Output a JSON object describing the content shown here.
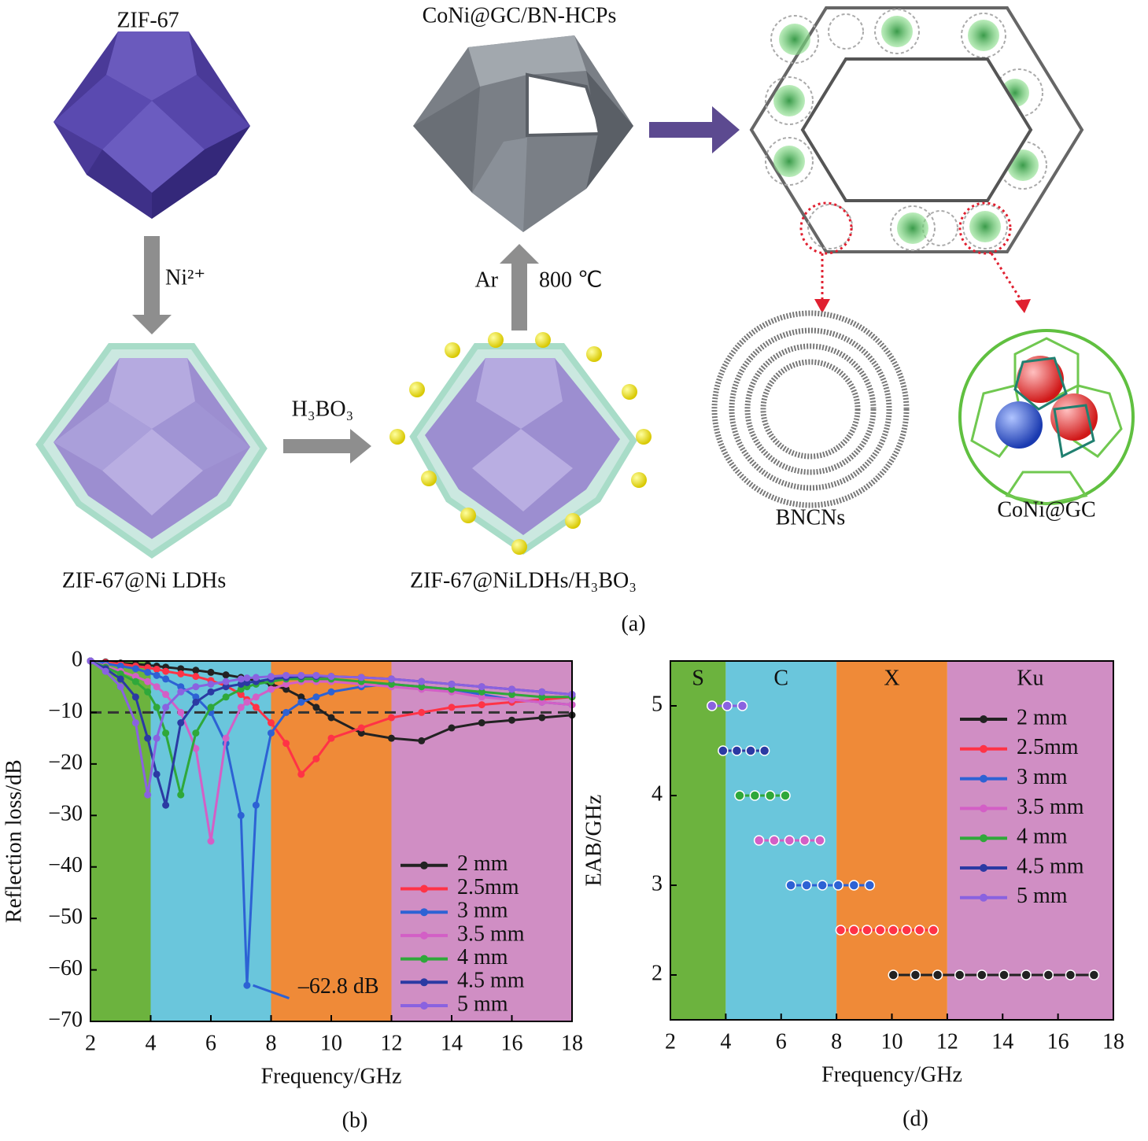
{
  "diagram": {
    "zif67": "ZIF-67",
    "ni": "Ni²⁺",
    "zif67_ldh": "ZIF-67@Ni LDHs",
    "h3bo3": "H₃BO₃",
    "zif67_ldh_h3bo3": "ZIF-67@NiLDHs/H₃BO₃",
    "ar": "Ar",
    "temp": "800 ℃",
    "product": "CoNi@GC/BN-HCPs",
    "bncns": "BNCNs",
    "conigc": "CoNi@GC",
    "panel": "(a)"
  },
  "chart_data": [
    {
      "type": "line",
      "panel": "(b)",
      "xlabel": "Frequency/GHz",
      "ylabel": "Reflection loss/dB",
      "xlim": [
        2,
        18
      ],
      "xticks": [
        2,
        4,
        6,
        8,
        10,
        12,
        14,
        16,
        18
      ],
      "ylim": [
        -70,
        0
      ],
      "yticks": [
        {
          "value": 0,
          "label": "0"
        },
        {
          "value": -10,
          "label": "−10"
        },
        {
          "value": -20,
          "label": "−20"
        },
        {
          "value": -30,
          "label": "−30"
        },
        {
          "value": -40,
          "label": "−40"
        },
        {
          "value": -50,
          "label": "−50"
        },
        {
          "value": -60,
          "label": "−60"
        },
        {
          "value": -70,
          "label": "−70"
        }
      ],
      "bands": [
        {
          "xlim": [
            2,
            4
          ],
          "color": "#6cb33e"
        },
        {
          "xlim": [
            4,
            8
          ],
          "color": "#6ac6dc"
        },
        {
          "xlim": [
            8,
            12
          ],
          "color": "#ef8a38"
        },
        {
          "xlim": [
            12,
            18
          ],
          "color": "#d08ec4"
        }
      ],
      "hline": -10,
      "annotation": "–62.8 dB",
      "legend": "lower right",
      "x": [
        2,
        2.5,
        3,
        3.5,
        3.9,
        4.2,
        4.5,
        5,
        5.5,
        6,
        6.5,
        7,
        7.2,
        7.5,
        8,
        8.5,
        9,
        9.5,
        10,
        11,
        12,
        13,
        14,
        15,
        16,
        17,
        18
      ],
      "series": [
        {
          "name": "2 mm",
          "color": "#222222",
          "values": [
            0,
            -0.2,
            -0.4,
            -0.6,
            -0.8,
            -1,
            -1.2,
            -1.5,
            -1.8,
            -2.2,
            -2.7,
            -3.2,
            -3.4,
            -3.8,
            -4.5,
            -5.5,
            -7,
            -9,
            -11,
            -14,
            -15,
            -15.5,
            -13,
            -12,
            -11.5,
            -11,
            -10.5
          ]
        },
        {
          "name": "2.5mm",
          "color": "#ff3346",
          "values": [
            0,
            -0.3,
            -0.6,
            -1,
            -1.3,
            -1.6,
            -2,
            -2.5,
            -3,
            -3.8,
            -4.8,
            -6.5,
            -7.5,
            -9,
            -12,
            -16,
            -22,
            -19,
            -15,
            -13,
            -11,
            -10,
            -9,
            -8.5,
            -8,
            -7.5,
            -7
          ]
        },
        {
          "name": "3 mm",
          "color": "#2d62d4",
          "values": [
            0,
            -0.5,
            -1,
            -1.5,
            -2.2,
            -2.8,
            -3.5,
            -5,
            -7,
            -10,
            -16,
            -30,
            -63,
            -28,
            -14,
            -10,
            -8,
            -7,
            -6,
            -5,
            -4.5,
            -5,
            -5.5,
            -6.5,
            -7.5,
            -8,
            -8.5
          ]
        },
        {
          "name": "3.5 mm",
          "color": "#d35fc6",
          "values": [
            0,
            -1,
            -2,
            -3,
            -4,
            -5,
            -6.5,
            -10,
            -17,
            -35,
            -15,
            -9,
            -8,
            -7,
            -5.5,
            -4.5,
            -4,
            -4,
            -4,
            -4.5,
            -5,
            -5.5,
            -6,
            -7,
            -7.5,
            -8,
            -8.5
          ]
        },
        {
          "name": "4 mm",
          "color": "#2fa83a",
          "values": [
            0,
            -1.2,
            -2.5,
            -4,
            -6,
            -9,
            -14,
            -26,
            -14,
            -9,
            -7,
            -5.5,
            -5,
            -4.5,
            -4,
            -3.5,
            -3.5,
            -3.5,
            -3.5,
            -4,
            -4.5,
            -5,
            -5.5,
            -6,
            -6.5,
            -7,
            -7
          ]
        },
        {
          "name": "4.5 mm",
          "color": "#2b3aa3",
          "values": [
            0,
            -1.5,
            -3.5,
            -7,
            -15,
            -22,
            -28,
            -12,
            -8,
            -6,
            -5,
            -4.5,
            -4.2,
            -4,
            -3.5,
            -3.2,
            -3,
            -3,
            -3,
            -3.2,
            -3.5,
            -4,
            -4.5,
            -5,
            -5.5,
            -6,
            -6.5
          ]
        },
        {
          "name": "5 mm",
          "color": "#8a62e0",
          "values": [
            0,
            -2,
            -5,
            -12,
            -26,
            -15,
            -9,
            -6,
            -5,
            -4.5,
            -4,
            -3.5,
            -3.3,
            -3.2,
            -3,
            -2.8,
            -2.8,
            -2.8,
            -3,
            -3.2,
            -3.5,
            -4,
            -4.5,
            -5,
            -5.5,
            -6,
            -6.5
          ]
        }
      ]
    },
    {
      "type": "scatter",
      "panel": "(d)",
      "xlabel": "Frequency/GHz",
      "ylabel": "EAB/GHz",
      "xlim": [
        2,
        18
      ],
      "xticks": [
        2,
        4,
        6,
        8,
        10,
        12,
        14,
        16,
        18
      ],
      "ylim": [
        1.5,
        5.5
      ],
      "yticks": [
        2,
        3,
        4,
        5
      ],
      "bands": [
        {
          "xlim": [
            2,
            4
          ],
          "color": "#6cb33e",
          "label": "S"
        },
        {
          "xlim": [
            4,
            8
          ],
          "color": "#6ac6dc",
          "label": "C"
        },
        {
          "xlim": [
            8,
            12
          ],
          "color": "#ef8a38",
          "label": "X"
        },
        {
          "xlim": [
            12,
            18
          ],
          "color": "#d08ec4",
          "label": "Ku"
        }
      ],
      "legend": "upper right",
      "series": [
        {
          "name": "2 mm",
          "color": "#222222",
          "x": [
            10.05,
            10.85,
            11.65,
            12.45,
            13.25,
            14.05,
            14.85,
            15.65,
            16.45,
            17.3
          ],
          "values": [
            2,
            2,
            2,
            2,
            2,
            2,
            2,
            2,
            2,
            2
          ]
        },
        {
          "name": "2.5mm",
          "color": "#ff3346",
          "x": [
            8.15,
            8.63,
            9.1,
            9.58,
            10.05,
            10.53,
            11,
            11.5
          ],
          "values": [
            2.5,
            2.5,
            2.5,
            2.5,
            2.5,
            2.5,
            2.5,
            2.5
          ]
        },
        {
          "name": "3 mm",
          "color": "#2d62d4",
          "x": [
            6.35,
            6.92,
            7.49,
            8.06,
            8.63,
            9.2
          ],
          "values": [
            3,
            3,
            3,
            3,
            3,
            3
          ]
        },
        {
          "name": "3.5 mm",
          "color": "#d35fc6",
          "x": [
            5.2,
            5.75,
            6.3,
            6.85,
            7.4
          ],
          "values": [
            3.5,
            3.5,
            3.5,
            3.5,
            3.5
          ]
        },
        {
          "name": "4 mm",
          "color": "#2fa83a",
          "x": [
            4.5,
            5.05,
            5.6,
            6.15
          ],
          "values": [
            4,
            4,
            4,
            4
          ]
        },
        {
          "name": "4.5 mm",
          "color": "#2b3aa3",
          "x": [
            3.9,
            4.4,
            4.9,
            5.4
          ],
          "values": [
            4.5,
            4.5,
            4.5,
            4.5
          ]
        },
        {
          "name": "5 mm",
          "color": "#8a62e0",
          "x": [
            3.5,
            4.05,
            4.6
          ],
          "values": [
            5,
            5,
            5
          ]
        }
      ]
    }
  ]
}
